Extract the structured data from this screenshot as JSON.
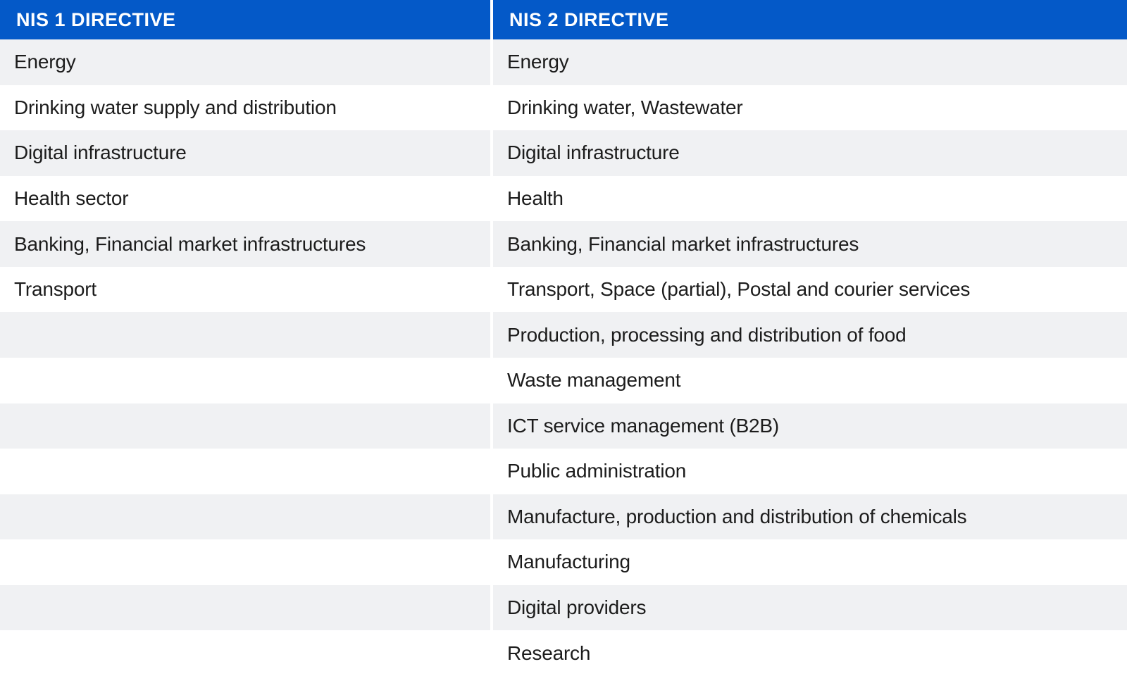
{
  "chart_data": {
    "type": "table",
    "columns": [
      "NIS 1 DIRECTIVE",
      "NIS 2 DIRECTIVE"
    ],
    "rows": [
      [
        "Energy",
        "Energy"
      ],
      [
        "Drinking water supply and distribution",
        "Drinking water, Wastewater"
      ],
      [
        "Digital infrastructure",
        "Digital infrastructure"
      ],
      [
        "Health sector",
        "Health"
      ],
      [
        "Banking, Financial market infrastructures",
        "Banking, Financial market infrastructures"
      ],
      [
        "Transport",
        "Transport, Space (partial), Postal and courier services"
      ],
      [
        "",
        "Production, processing and distribution of food"
      ],
      [
        "",
        "Waste management"
      ],
      [
        "",
        "ICT service management (B2B)"
      ],
      [
        "",
        "Public administration"
      ],
      [
        "",
        "Manufacture, production and distribution of chemicals"
      ],
      [
        "",
        "Manufacturing"
      ],
      [
        "",
        "Digital providers"
      ],
      [
        "",
        "Research"
      ]
    ],
    "layout": {
      "header_bg": "#0459C8",
      "header_text_color": "#FFFFFF",
      "row_alt_bg": "#F0F1F3",
      "row_bg": "#FFFFFF",
      "text_color": "#1C1C1C",
      "zebra_striping": true,
      "column_divider_color": "#FFFFFF"
    }
  }
}
